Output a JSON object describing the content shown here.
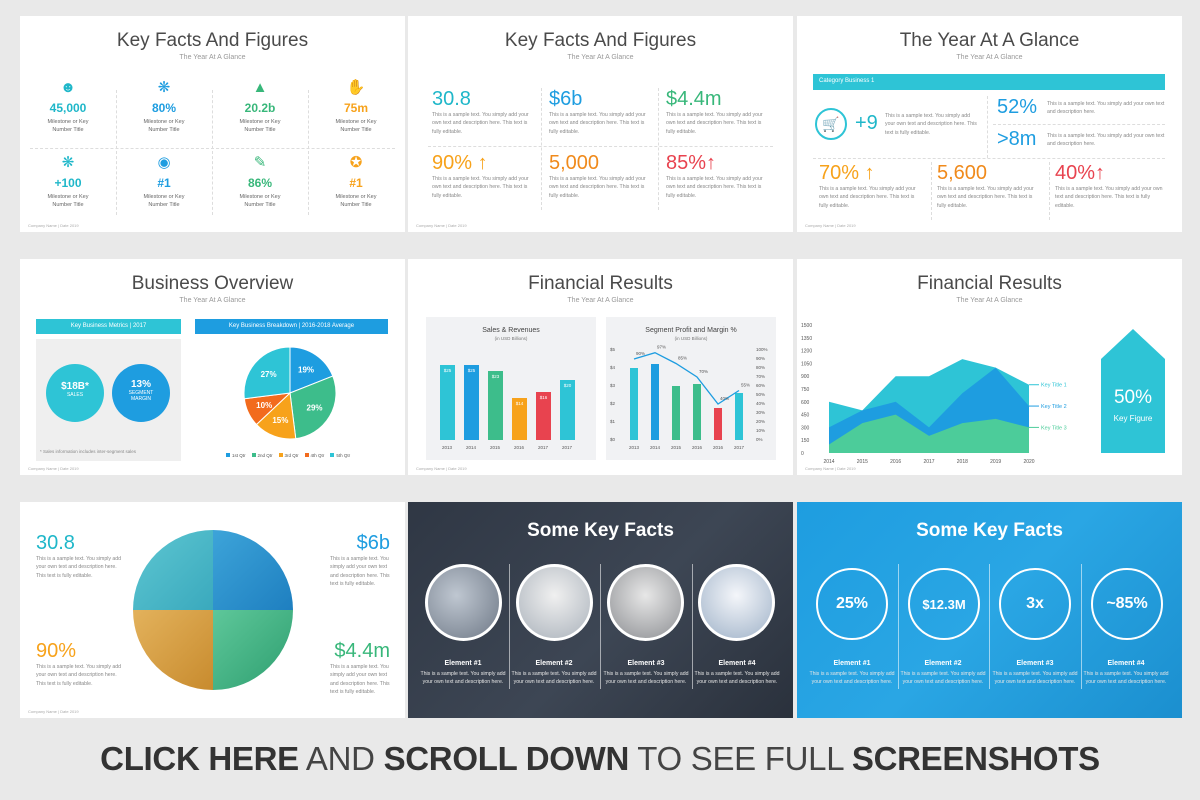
{
  "footer": "Company Name | Date 2019",
  "slide1": {
    "title": "Key Facts And Figures",
    "subtitle": "The Year At A Glance",
    "label": "Milestone or Key\nNumber Title",
    "items": [
      {
        "value": "45,000",
        "icon": "people-icon"
      },
      {
        "value": "80%",
        "icon": "brain-icon"
      },
      {
        "value": "20.2b",
        "icon": "growth-chart-icon"
      },
      {
        "value": "75m",
        "icon": "handshake-icon"
      },
      {
        "value": "+100",
        "icon": "network-icon"
      },
      {
        "value": "#1",
        "icon": "globe-icon"
      },
      {
        "value": "86%",
        "icon": "document-pen-icon"
      },
      {
        "value": "#1",
        "icon": "award-icon"
      }
    ]
  },
  "slide2": {
    "title": "Key Facts And Figures",
    "subtitle": "The Year At A Glance",
    "desc": "This is a sample text. You simply add your own text and description here. This text is fully editable.",
    "items": [
      {
        "value": "30.8",
        "color": "#1fb7c9"
      },
      {
        "value": "$6b",
        "color": "#1e9de0"
      },
      {
        "value": "$4.4m",
        "color": "#38b77a"
      },
      {
        "value": "90% ↑",
        "color": "#f7a21b"
      },
      {
        "value": "5,000",
        "color": "#f08a1b"
      },
      {
        "value": "85%↑",
        "color": "#e8434f"
      }
    ]
  },
  "slide3": {
    "title": "The Year At A Glance",
    "subtitle": "The Year At A Glance",
    "category": "Category Business 1",
    "main_value": "+9",
    "desc": "This is a sample text. You simply add your own text and description here. This text is fully editable.",
    "desc_short": "This is a sample text. You simply add your own text and description here.",
    "right": [
      "52%",
      ">8m"
    ],
    "bottom": [
      {
        "value": "70% ↑",
        "color": "#f7a21b"
      },
      {
        "value": "5,600",
        "color": "#f08a1b"
      },
      {
        "value": "40%↑",
        "color": "#e8434f"
      }
    ]
  },
  "slide4": {
    "title": "Business Overview",
    "subtitle": "The Year At A Glance",
    "left_header": "Key Business Metrics | 2017",
    "right_header": "Key Business Breakdown | 2016-2018 Average",
    "metric1": {
      "value": "$18B*",
      "label": "SALES"
    },
    "metric2": {
      "value": "13%",
      "label": "SEGMENT\nMARGIN"
    },
    "note": "* Sales information includes inter-segment sales",
    "pie": [
      {
        "label": "19%",
        "value": 19,
        "color": "#1e9de0",
        "name": "1st Qtr"
      },
      {
        "label": "29%",
        "value": 29,
        "color": "#3dbd8b",
        "name": "2nd Qtr"
      },
      {
        "label": "15%",
        "value": 15,
        "color": "#f7a21b",
        "name": "3rd Qtr"
      },
      {
        "label": "10%",
        "value": 10,
        "color": "#f26b1d",
        "name": "4th Qtr"
      },
      {
        "label": "27%",
        "value": 27,
        "color": "#2ec4d6",
        "name": "5th Qtr"
      }
    ]
  },
  "slide5": {
    "title": "Financial Results",
    "subtitle": "The Year At A Glance"
  },
  "slide6": {
    "title": "Financial Results",
    "subtitle": "The Year At A Glance",
    "series_labels": [
      "Key Title 1",
      "Key Title 2",
      "Key Title 3"
    ],
    "figure_value": "50%",
    "figure_label": "Key Figure"
  },
  "slide7": {
    "desc": "This is a sample text. You simply add your own text and description here. This text is fully editable.",
    "values": [
      "30.8",
      "$6b",
      "90%",
      "$4.4m"
    ]
  },
  "slide8": {
    "title": "Some Key Facts",
    "desc": "This is a sample text. You simply add your own text and description here.",
    "elements": [
      "Element #1",
      "Element #2",
      "Element #3",
      "Element #4"
    ]
  },
  "slide9": {
    "title": "Some Key Facts",
    "desc": "This is a sample text. You simply add your own text and description here.",
    "values": [
      "25%",
      "$12.3M",
      "3x",
      "~85%"
    ],
    "elements": [
      "Element #1",
      "Element #2",
      "Element #3",
      "Element #4"
    ]
  },
  "banner": {
    "part1": "CLICK HERE",
    "part2": " AND ",
    "part3": "SCROLL DOWN",
    "part4": " TO SEE FULL ",
    "part5": "SCREENSHOTS"
  },
  "chart_data": [
    {
      "type": "bar",
      "title": "Sales & Revenues",
      "subtitle": "(in USD Billions)",
      "categories": [
        "2013",
        "2014",
        "2015",
        "2016",
        "2017",
        "2017"
      ],
      "values": [
        25,
        25,
        23,
        14,
        16,
        20
      ],
      "labels": [
        "$25",
        "$25",
        "$23",
        "$14",
        "$16",
        "$20"
      ],
      "colors": [
        "#2ec4d6",
        "#1e9de0",
        "#3dbd8b",
        "#f7a21b",
        "#e8434f",
        "#2ec4d6"
      ]
    },
    {
      "type": "bar",
      "title": "Segment Profit and Margin %",
      "subtitle": "(in USD Billions)",
      "categories": [
        "2013",
        "2014",
        "2015",
        "2016",
        "2016",
        "2017"
      ],
      "series": [
        {
          "values": [
            4,
            4.2,
            3,
            3.1,
            1.8,
            2.6
          ],
          "colors": [
            "#2ec4d6",
            "#1e9de0",
            "#3dbd8b",
            "#3dbd8b",
            "#e8434f",
            "#2ec4d6"
          ]
        },
        {
          "values": [
            90,
            97,
            85,
            70,
            40,
            55
          ],
          "labels": [
            "90%",
            "97%",
            "85%",
            "70%",
            "40%",
            "55%"
          ]
        }
      ],
      "y_ticks": [
        "$0",
        "$1",
        "$2",
        "$3",
        "$4",
        "$5"
      ],
      "y2_ticks": [
        "0%",
        "10%",
        "20%",
        "30%",
        "40%",
        "50%",
        "60%",
        "70%",
        "80%",
        "90%",
        "100%"
      ]
    },
    {
      "type": "area",
      "x": [
        "2014",
        "2015",
        "2016",
        "2017",
        "2018",
        "2019",
        "2020"
      ],
      "y_ticks": [
        "0",
        "150",
        "300",
        "450",
        "600",
        "750",
        "900",
        "1050",
        "1200",
        "1350",
        "1500"
      ],
      "series": [
        {
          "name": "Key Title 1",
          "color": "#2ec4d6",
          "values": [
            600,
            500,
            900,
            900,
            1100,
            1000,
            800
          ]
        },
        {
          "name": "Key Title 2",
          "color": "#1e9de0",
          "values": [
            300,
            500,
            600,
            300,
            700,
            1000,
            550
          ]
        },
        {
          "name": "Key Title 3",
          "color": "#4ccc9a",
          "values": [
            100,
            350,
            450,
            200,
            350,
            400,
            300
          ]
        }
      ]
    },
    {
      "type": "pie",
      "values": [
        19,
        29,
        15,
        10,
        27
      ],
      "labels": [
        "19%",
        "29%",
        "15%",
        "10%",
        "27%"
      ],
      "categories": [
        "1st Qtr",
        "2nd Qtr",
        "3rd Qtr",
        "4th Qtr",
        "5th Qtr"
      ]
    }
  ]
}
